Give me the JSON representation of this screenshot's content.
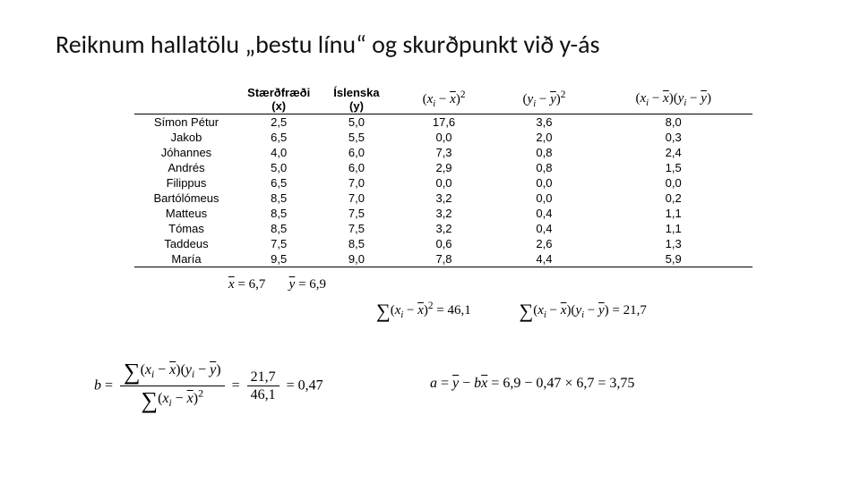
{
  "title": "Reiknum hallatölu „bestu línu“ og skurðpunkt við y-ás",
  "table": {
    "headers": {
      "name": "",
      "x_top": "Stærðfræði",
      "x_sub": "(x)",
      "y_top": "Íslenska",
      "y_sub": "(y)"
    },
    "rows": [
      {
        "name": "Símon Pétur",
        "x": "2,5",
        "y": "5,0",
        "dx2": "17,6",
        "dy2": "3,6",
        "dxdy": "8,0"
      },
      {
        "name": "Jakob",
        "x": "6,5",
        "y": "5,5",
        "dx2": "0,0",
        "dy2": "2,0",
        "dxdy": "0,3"
      },
      {
        "name": "Jóhannes",
        "x": "4,0",
        "y": "6,0",
        "dx2": "7,3",
        "dy2": "0,8",
        "dxdy": "2,4"
      },
      {
        "name": "Andrés",
        "x": "5,0",
        "y": "6,0",
        "dx2": "2,9",
        "dy2": "0,8",
        "dxdy": "1,5"
      },
      {
        "name": "Filippus",
        "x": "6,5",
        "y": "7,0",
        "dx2": "0,0",
        "dy2": "0,0",
        "dxdy": "0,0"
      },
      {
        "name": "Bartólómeus",
        "x": "8,5",
        "y": "7,0",
        "dx2": "3,2",
        "dy2": "0,0",
        "dxdy": "0,2"
      },
      {
        "name": "Matteus",
        "x": "8,5",
        "y": "7,5",
        "dx2": "3,2",
        "dy2": "0,4",
        "dxdy": "1,1"
      },
      {
        "name": "Tómas",
        "x": "8,5",
        "y": "7,5",
        "dx2": "3,2",
        "dy2": "0,4",
        "dxdy": "1,1"
      },
      {
        "name": "Taddeus",
        "x": "7,5",
        "y": "8,5",
        "dx2": "0,6",
        "dy2": "2,6",
        "dxdy": "1,3"
      },
      {
        "name": "María",
        "x": "9,5",
        "y": "9,0",
        "dx2": "7,8",
        "dy2": "4,4",
        "dxdy": "5,9"
      }
    ]
  },
  "means": {
    "xbar": "6,7",
    "ybar": "6,9"
  },
  "sums": {
    "sxx": "46,1",
    "sxy": "21,7"
  },
  "calc_b": {
    "num": "21,7",
    "den": "46,1",
    "val": "0,47"
  },
  "calc_a": {
    "ybar": "6,9",
    "b": "0,47",
    "xbar": "6,7",
    "val": "3,75"
  }
}
